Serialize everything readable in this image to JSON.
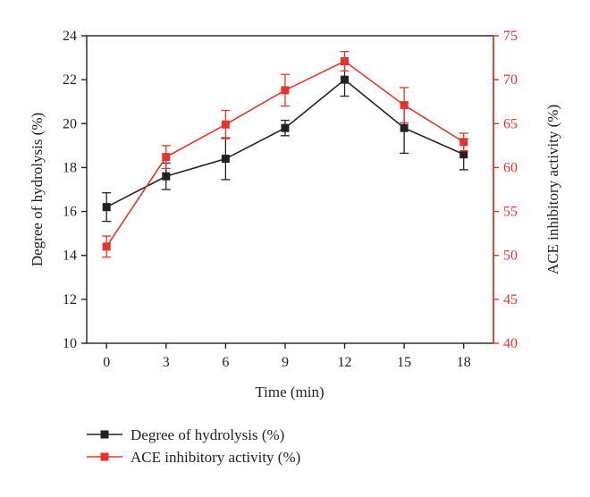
{
  "chart_data": {
    "type": "line",
    "title": "",
    "xlabel": "Time (min)",
    "ylabel_left": "Degree of hydrolysis (%)",
    "ylabel_right": "ACE inhibitory activity (%)",
    "x": [
      0,
      3,
      6,
      9,
      12,
      15,
      18
    ],
    "x_ticks": [
      "0",
      "3",
      "6",
      "9",
      "12",
      "15",
      "18"
    ],
    "xlim": [
      -1,
      19.5
    ],
    "ylim_left": [
      10,
      24
    ],
    "ylim_right": [
      40,
      75
    ],
    "y_ticks_left": [
      "10",
      "12",
      "14",
      "16",
      "18",
      "20",
      "22",
      "24"
    ],
    "y_ticks_right": [
      "40",
      "45",
      "50",
      "55",
      "60",
      "65",
      "70",
      "75"
    ],
    "grid": false,
    "legend_position": "bottom-left",
    "series": [
      {
        "name": "Degree of hydrolysis (%)",
        "axis": "left",
        "color": "#222222",
        "marker": "square",
        "values": [
          16.2,
          17.6,
          18.4,
          19.8,
          22.0,
          19.8,
          18.6
        ],
        "errors": [
          0.65,
          0.6,
          0.95,
          0.35,
          0.75,
          1.15,
          0.7
        ]
      },
      {
        "name": "ACE inhibitory activity (%)",
        "axis": "right",
        "color": "#e8332a",
        "marker": "square",
        "values": [
          51.0,
          61.2,
          64.9,
          68.8,
          72.1,
          67.1,
          62.9
        ],
        "errors": [
          1.2,
          1.3,
          1.6,
          1.8,
          1.1,
          2.0,
          1.0
        ]
      }
    ]
  }
}
